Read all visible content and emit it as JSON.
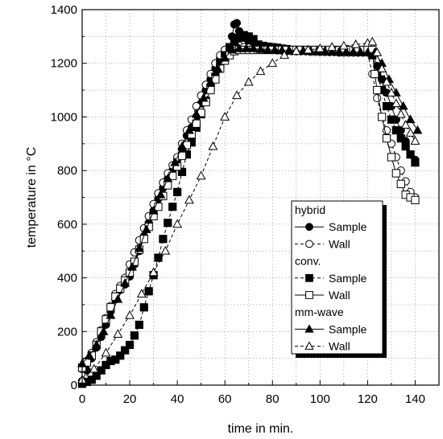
{
  "chart_data": {
    "type": "line",
    "title": "",
    "xlabel": "time  in min.",
    "ylabel": "temperature in °C",
    "xlim": [
      0,
      150
    ],
    "ylim": [
      0,
      1400
    ],
    "xticks": [
      0,
      20,
      40,
      60,
      80,
      100,
      120,
      140
    ],
    "yticks": [
      0,
      200,
      400,
      600,
      800,
      1000,
      1200,
      1400
    ],
    "grid": true,
    "legend_placement": "lower-right",
    "legend_groups": [
      {
        "title": "hybrid",
        "series": [
          0,
          1
        ]
      },
      {
        "title": "conv.",
        "series": [
          2,
          3
        ]
      },
      {
        "title": "mm-wave",
        "series": [
          4,
          5
        ]
      }
    ],
    "series": [
      {
        "name": "Sample",
        "group": "hybrid",
        "marker": "circle",
        "fill": "filled",
        "line": "solid",
        "x": [
          0,
          2,
          4,
          6,
          8,
          10,
          12,
          14,
          16,
          18,
          20,
          22,
          24,
          26,
          28,
          30,
          32,
          34,
          36,
          38,
          40,
          42,
          44,
          46,
          48,
          50,
          52,
          54,
          56,
          58,
          60,
          62,
          63,
          64,
          65,
          66,
          68,
          70,
          72,
          74,
          76,
          78,
          80,
          82,
          84,
          86,
          88,
          90,
          92,
          94,
          96,
          98,
          100,
          102,
          104,
          106,
          108,
          110,
          112,
          114,
          116,
          118,
          120,
          122,
          124,
          126,
          128,
          130,
          132,
          134,
          136,
          138,
          140
        ],
        "y": [
          15,
          55,
          100,
          140,
          180,
          225,
          275,
          320,
          355,
          375,
          405,
          450,
          500,
          555,
          605,
          650,
          695,
          735,
          770,
          800,
          840,
          880,
          930,
          960,
          1000,
          1050,
          1100,
          1140,
          1180,
          1220,
          1250,
          1255,
          1300,
          1345,
          1350,
          1320,
          1295,
          1280,
          1270,
          1265,
          1260,
          1260,
          1255,
          1253,
          1250,
          1250,
          1248,
          1245,
          1245,
          1245,
          1243,
          1243,
          1242,
          1242,
          1242,
          1242,
          1240,
          1240,
          1240,
          1240,
          1240,
          1240,
          1240,
          1240,
          1190,
          1140,
          1090,
          1040,
          990,
          950,
          910,
          860,
          840
        ]
      },
      {
        "name": "Wall",
        "group": "hybrid",
        "marker": "circle",
        "fill": "open",
        "line": "dashed",
        "x": [
          0,
          2,
          4,
          6,
          8,
          10,
          12,
          14,
          16,
          18,
          20,
          22,
          24,
          26,
          28,
          30,
          32,
          34,
          36,
          38,
          40,
          42,
          44,
          46,
          48,
          50,
          52,
          54,
          56,
          58,
          60,
          62,
          64,
          66,
          68,
          70,
          72,
          74,
          76,
          78,
          80,
          82,
          84,
          86,
          88,
          90,
          92,
          94,
          96,
          98,
          100,
          102,
          104,
          106,
          108,
          110,
          112,
          114,
          116,
          118,
          120,
          122,
          124,
          126,
          128,
          130,
          132,
          134,
          136,
          138,
          140
        ],
        "y": [
          60,
          90,
          120,
          160,
          205,
          250,
          295,
          340,
          370,
          400,
          450,
          495,
          540,
          585,
          630,
          675,
          715,
          755,
          790,
          820,
          850,
          900,
          950,
          990,
          1040,
          1080,
          1120,
          1160,
          1200,
          1230,
          1250,
          1260,
          1265,
          1265,
          1260,
          1258,
          1255,
          1255,
          1252,
          1250,
          1250,
          1248,
          1248,
          1245,
          1245,
          1245,
          1245,
          1245,
          1243,
          1243,
          1243,
          1243,
          1242,
          1242,
          1242,
          1240,
          1240,
          1240,
          1240,
          1240,
          1240,
          1160,
          1070,
          1000,
          950,
          900,
          850,
          800,
          760,
          720,
          700
        ]
      },
      {
        "name": "Sample",
        "group": "conv.",
        "marker": "square",
        "fill": "filled",
        "line": "dashed",
        "x": [
          0,
          2,
          4,
          6,
          8,
          10,
          12,
          14,
          16,
          18,
          20,
          22,
          24,
          26,
          28,
          30,
          32,
          34,
          36,
          38,
          40,
          42,
          44,
          46,
          48,
          50,
          52,
          54,
          56,
          58,
          60,
          62,
          64,
          66,
          68,
          70,
          72,
          74,
          76,
          78,
          80,
          82,
          84,
          86,
          88,
          90,
          92,
          94,
          96,
          98,
          100,
          102,
          104,
          106,
          108,
          110,
          112,
          114,
          116,
          118,
          120,
          122,
          124,
          126,
          128,
          130,
          132,
          134,
          136,
          138,
          140
        ],
        "y": [
          5,
          12,
          20,
          35,
          55,
          75,
          90,
          95,
          110,
          130,
          150,
          185,
          225,
          290,
          350,
          410,
          475,
          545,
          605,
          665,
          720,
          795,
          860,
          905,
          960,
          1010,
          1060,
          1110,
          1150,
          1200,
          1230,
          1260,
          1280,
          1295,
          1305,
          1300,
          1290,
          1270,
          1265,
          1262,
          1260,
          1258,
          1255,
          1253,
          1250,
          1250,
          1250,
          1250,
          1248,
          1248,
          1247,
          1247,
          1245,
          1245,
          1245,
          1245,
          1245,
          1245,
          1243,
          1243,
          1243,
          1230,
          1160,
          1100,
          1040,
          990,
          950,
          920,
          890,
          860,
          830
        ]
      },
      {
        "name": "Wall",
        "group": "conv.",
        "marker": "square",
        "fill": "open",
        "line": "solid",
        "x": [
          0,
          2,
          4,
          6,
          8,
          10,
          12,
          14,
          16,
          18,
          20,
          22,
          24,
          26,
          28,
          30,
          32,
          34,
          36,
          38,
          40,
          42,
          44,
          46,
          48,
          50,
          52,
          54,
          56,
          58,
          60,
          62,
          64,
          66,
          68,
          70,
          72,
          74,
          76,
          78,
          80,
          82,
          84,
          86,
          88,
          90,
          92,
          94,
          96,
          98,
          100,
          102,
          104,
          106,
          108,
          110,
          112,
          114,
          116,
          118,
          120,
          122,
          123,
          124,
          126,
          128,
          130,
          132,
          134,
          136,
          138,
          140
        ],
        "y": [
          65,
          85,
          110,
          150,
          200,
          245,
          290,
          330,
          360,
          390,
          420,
          460,
          505,
          545,
          590,
          630,
          665,
          705,
          745,
          780,
          815,
          855,
          895,
          935,
          975,
          1015,
          1055,
          1100,
          1140,
          1180,
          1210,
          1230,
          1245,
          1250,
          1250,
          1250,
          1250,
          1250,
          1250,
          1250,
          1250,
          1250,
          1250,
          1250,
          1250,
          1250,
          1250,
          1250,
          1250,
          1250,
          1250,
          1250,
          1250,
          1250,
          1250,
          1250,
          1250,
          1250,
          1250,
          1250,
          1250,
          1250,
          1160,
          1100,
          1000,
          920,
          850,
          790,
          750,
          710,
          700,
          690
        ]
      },
      {
        "name": "Sample",
        "group": "mm-wave",
        "marker": "triangle",
        "fill": "filled",
        "line": "solid",
        "x": [
          0,
          3,
          6,
          9,
          12,
          15,
          18,
          21,
          24,
          27,
          30,
          33,
          36,
          39,
          42,
          45,
          48,
          51,
          54,
          57,
          60,
          63,
          66,
          69,
          72,
          75,
          78,
          81,
          84,
          87,
          90,
          93,
          96,
          99,
          102,
          105,
          108,
          111,
          114,
          117,
          120,
          123,
          126,
          129,
          132,
          135,
          138,
          141
        ],
        "y": [
          80,
          110,
          150,
          200,
          260,
          320,
          380,
          440,
          510,
          580,
          650,
          710,
          770,
          830,
          890,
          950,
          1010,
          1070,
          1130,
          1180,
          1220,
          1250,
          1255,
          1255,
          1255,
          1252,
          1250,
          1250,
          1248,
          1248,
          1247,
          1247,
          1245,
          1245,
          1245,
          1243,
          1243,
          1242,
          1242,
          1242,
          1240,
          1240,
          1200,
          1140,
          1090,
          1040,
          990,
          950
        ]
      },
      {
        "name": "Wall",
        "group": "mm-wave",
        "marker": "triangle",
        "fill": "open",
        "line": "dashed",
        "x": [
          0,
          5,
          10,
          15,
          20,
          25,
          30,
          35,
          40,
          45,
          50,
          55,
          60,
          65,
          70,
          75,
          80,
          85,
          90,
          95,
          100,
          105,
          110,
          115,
          120,
          122,
          124,
          126,
          128,
          130,
          132,
          134,
          136,
          138,
          140
        ],
        "y": [
          20,
          60,
          120,
          190,
          260,
          340,
          420,
          500,
          600,
          690,
          780,
          890,
          1000,
          1080,
          1130,
          1170,
          1200,
          1230,
          1245,
          1250,
          1255,
          1260,
          1265,
          1270,
          1275,
          1280,
          1240,
          1180,
          1130,
          1090,
          1050,
          1010,
          970,
          940,
          910
        ]
      }
    ]
  }
}
